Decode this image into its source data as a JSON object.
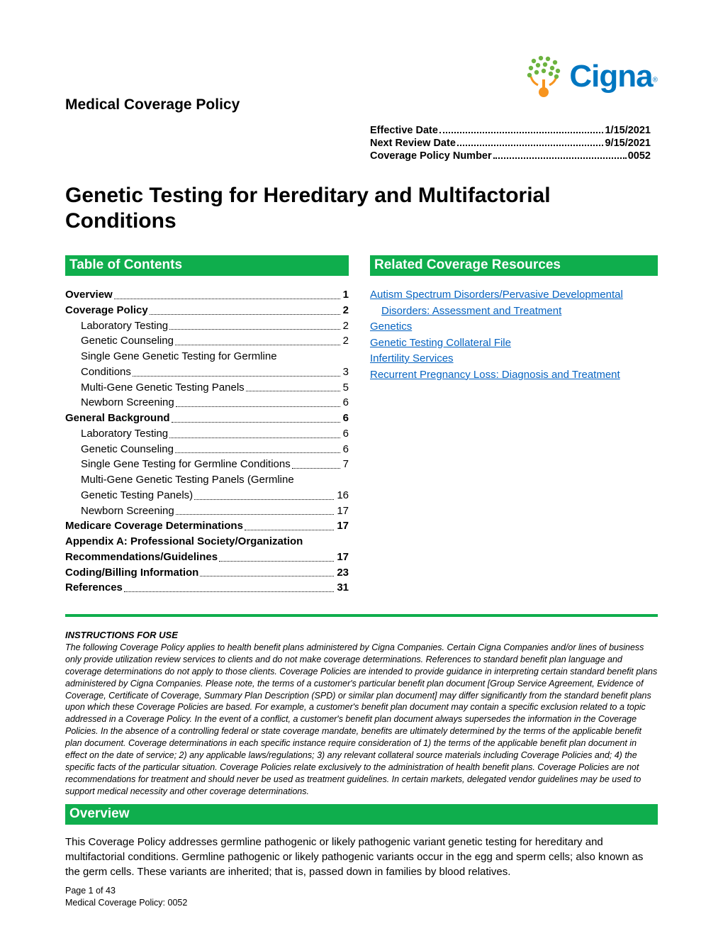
{
  "header": {
    "policy_type": "Medical Coverage Policy",
    "brand": "Cigna",
    "brand_mark": "®"
  },
  "meta": {
    "rows": [
      {
        "label": "Effective Date",
        "value": "1/15/2021"
      },
      {
        "label": "Next Review Date",
        "value": "9/15/2021"
      },
      {
        "label": "Coverage Policy Number",
        "value": "0052"
      }
    ]
  },
  "title": "Genetic Testing for Hereditary and Multifactorial Conditions",
  "toc": {
    "heading": "Table of Contents",
    "items": [
      {
        "label": "Overview",
        "page": "1",
        "bold": true,
        "indent": false
      },
      {
        "label": "Coverage Policy",
        "page": "2",
        "bold": true,
        "indent": false
      },
      {
        "label": "Laboratory Testing",
        "page": "2",
        "bold": false,
        "indent": true
      },
      {
        "label": "Genetic Counseling",
        "page": "2",
        "bold": false,
        "indent": true
      },
      {
        "label": "Single Gene Genetic Testing for Germline Conditions",
        "page": "3",
        "bold": false,
        "indent": true,
        "wrap": true,
        "line1": "Single Gene Genetic Testing for Germline",
        "line2": "Conditions"
      },
      {
        "label": "Multi-Gene Genetic Testing Panels",
        "page": "5",
        "bold": false,
        "indent": true
      },
      {
        "label": "Newborn Screening",
        "page": "6",
        "bold": false,
        "indent": true
      },
      {
        "label": "General Background",
        "page": "6",
        "bold": true,
        "indent": false
      },
      {
        "label": "Laboratory Testing",
        "page": "6",
        "bold": false,
        "indent": true
      },
      {
        "label": "Genetic Counseling",
        "page": "6",
        "bold": false,
        "indent": true
      },
      {
        "label": "Single Gene Testing for Germline Conditions",
        "page": "7",
        "bold": false,
        "indent": true
      },
      {
        "label": "Multi-Gene Genetic Testing Panels (Germline Genetic Testing Panels)",
        "page": "16",
        "bold": false,
        "indent": true,
        "wrap": true,
        "line1": "Multi-Gene Genetic Testing Panels (Germline",
        "line2": "Genetic Testing Panels)"
      },
      {
        "label": "Newborn Screening",
        "page": "17",
        "bold": false,
        "indent": true
      },
      {
        "label": "Medicare Coverage Determinations",
        "page": "17",
        "bold": true,
        "indent": false
      },
      {
        "label": "Appendix A: Professional Society/Organization Recommendations/Guidelines",
        "page": "17",
        "bold": true,
        "indent": false,
        "wrap": true,
        "line1": "Appendix A: Professional Society/Organization",
        "line2": "Recommendations/Guidelines"
      },
      {
        "label": "Coding/Billing Information",
        "page": "23",
        "bold": true,
        "indent": false
      },
      {
        "label": "References",
        "page": "31",
        "bold": true,
        "indent": false
      }
    ]
  },
  "related": {
    "heading": "Related Coverage Resources",
    "links": [
      {
        "text": "Autism Spectrum Disorders/Pervasive Developmental",
        "indent": false
      },
      {
        "text": "Disorders: Assessment and Treatment",
        "indent": true
      },
      {
        "text": "Genetics",
        "indent": false
      },
      {
        "text": "Genetic Testing Collateral File",
        "indent": false
      },
      {
        "text": "Infertility Services",
        "indent": false
      },
      {
        "text": "Recurrent Pregnancy Loss: Diagnosis and Treatment",
        "indent": false
      }
    ]
  },
  "instructions": {
    "title": "INSTRUCTIONS FOR USE",
    "body": "The following Coverage Policy applies to health benefit plans administered by Cigna Companies. Certain Cigna Companies and/or lines of business only provide utilization review services to clients and do not make coverage determinations. References to standard benefit plan language and coverage determinations do not apply to those clients. Coverage Policies are intended to provide guidance in interpreting certain standard benefit plans administered by Cigna Companies. Please note, the terms of a customer's particular benefit plan document [Group Service Agreement, Evidence of Coverage, Certificate of Coverage, Summary Plan Description (SPD) or similar plan document] may differ significantly from the standard benefit plans upon which these Coverage Policies are based. For example, a customer's benefit plan document may contain a specific exclusion related to a topic addressed in a Coverage Policy. In the event of a conflict, a customer's benefit plan document always supersedes the information in the Coverage Policies. In the absence of a controlling federal or state coverage mandate, benefits are ultimately determined by the terms of the applicable benefit plan document. Coverage determinations in each specific instance require consideration of 1) the terms of the applicable benefit plan document in effect on the date of service; 2) any applicable laws/regulations; 3) any relevant collateral source materials including Coverage Policies and; 4) the specific facts of the particular situation. Coverage Policies relate exclusively to the administration of health benefit plans. Coverage Policies are not recommendations for treatment and should never be used as treatment guidelines. In certain markets, delegated vendor guidelines may be used to support medical necessity and other coverage determinations."
  },
  "overview": {
    "heading": "Overview",
    "body": "This Coverage Policy addresses germline pathogenic or likely pathogenic variant genetic testing for hereditary and multifactorial conditions. Germline pathogenic or likely pathogenic variants occur in the egg and sperm cells; also known as the germ cells. These variants are inherited; that is, passed down in families by blood relatives."
  },
  "footer": {
    "page": "Page 1 of 43",
    "policy": "Medical Coverage Policy: 0052"
  },
  "colors": {
    "green": "#0fae4d",
    "link": "#0563c1",
    "brand_blue": "#0076c0",
    "brand_orange": "#f7941e",
    "brand_leaf": "#6cb33f"
  }
}
